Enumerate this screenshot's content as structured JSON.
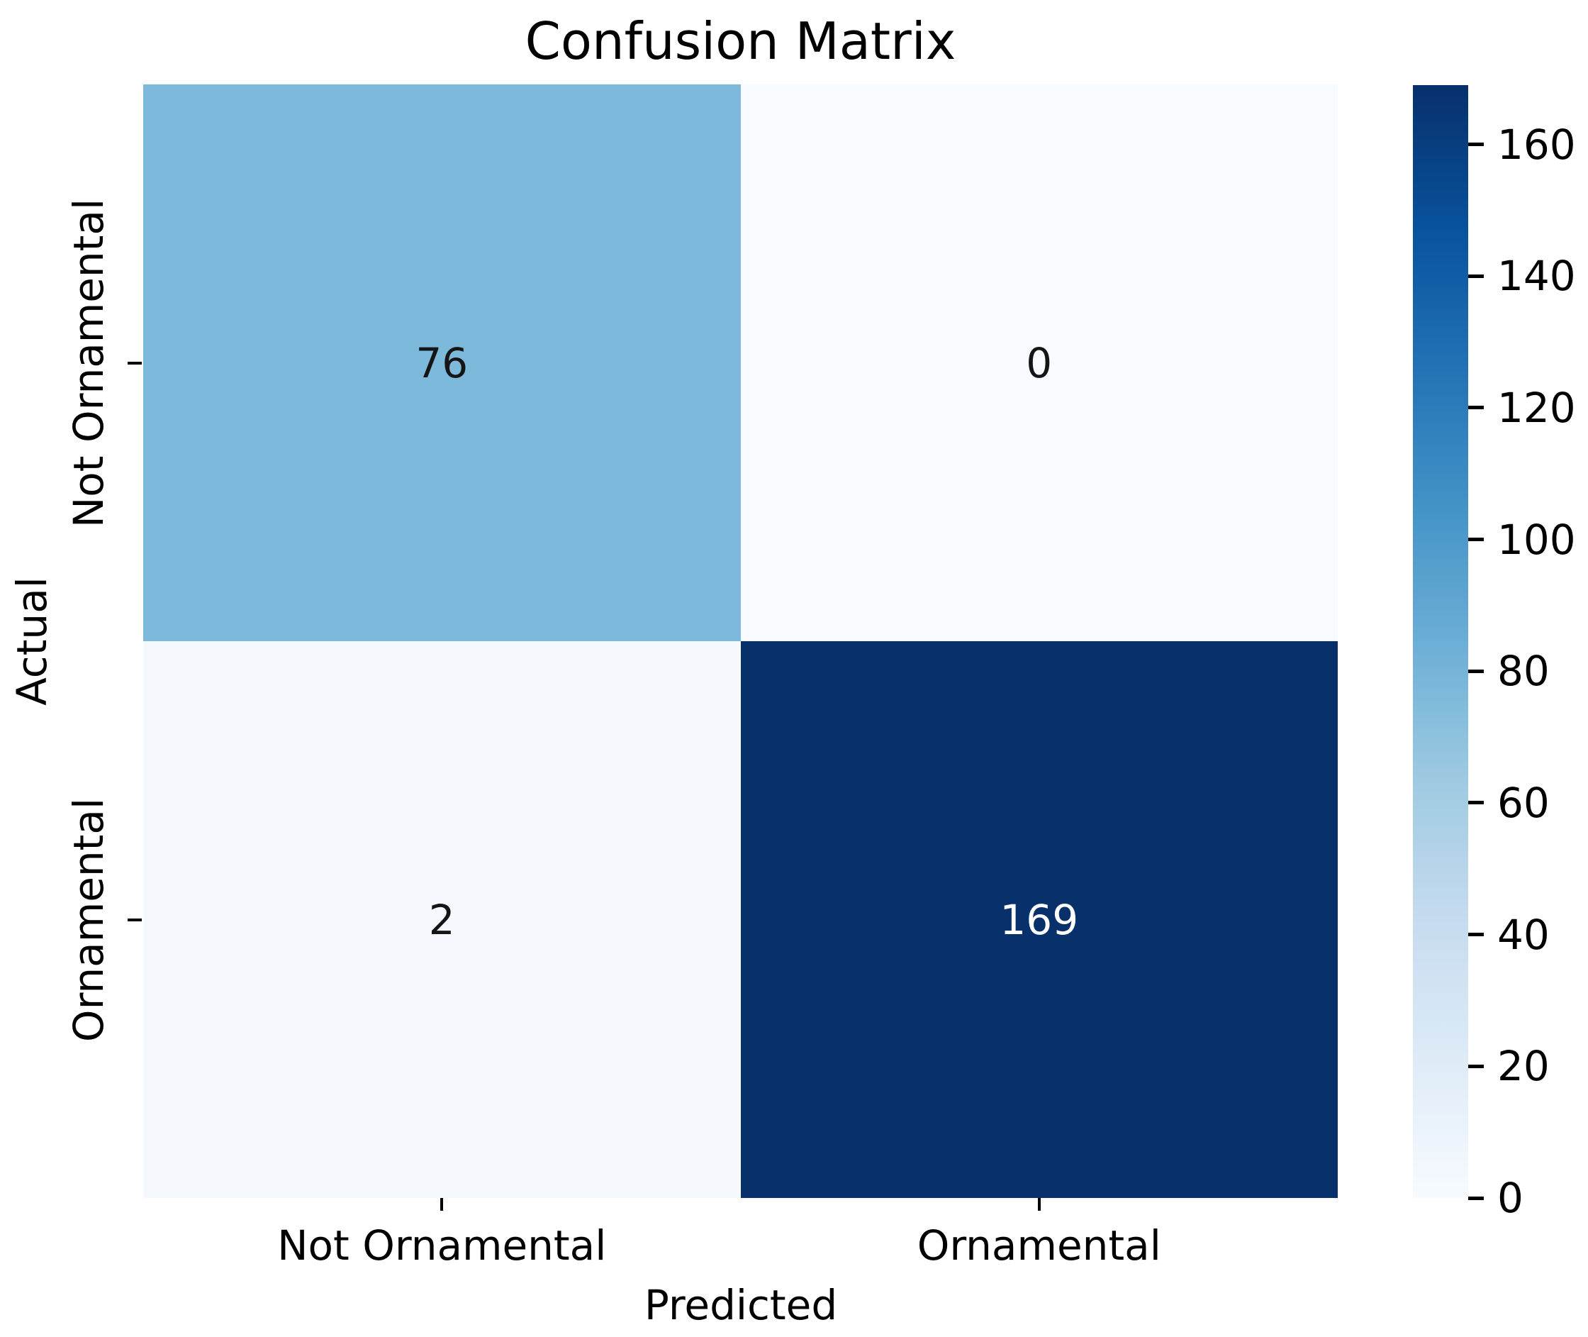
{
  "chart_data": {
    "type": "heatmap",
    "title": "Confusion Matrix",
    "xlabel": "Predicted",
    "ylabel": "Actual",
    "x_categories": [
      "Not Ornamental",
      "Ornamental"
    ],
    "y_categories": [
      "Not Ornamental",
      "Ornamental"
    ],
    "rows": [
      {
        "label": "Not Ornamental",
        "values": [
          76,
          0
        ]
      },
      {
        "label": "Ornamental",
        "values": [
          2,
          169
        ]
      }
    ],
    "vmin": 0,
    "vmax": 169,
    "colormap": "Blues",
    "colorbar_ticks": [
      0,
      20,
      40,
      60,
      80,
      100,
      120,
      140,
      160
    ],
    "colorbar_position": "right",
    "grid": false
  },
  "colors": {
    "background": "#ffffff",
    "cell_colors": [
      [
        "#7db9da",
        "#f7fbff"
      ],
      [
        "#f5f9fe",
        "#08306b"
      ]
    ],
    "cell_text_colors": [
      [
        "#151515",
        "#151515"
      ],
      [
        "#151515",
        "#ffffff"
      ]
    ],
    "gradient_stops": [
      "#f7fbff",
      "#deebf7",
      "#c6dbef",
      "#9ecae1",
      "#6baed6",
      "#4292c6",
      "#2171b5",
      "#08519c",
      "#08306b"
    ],
    "axis_color": "#000000"
  }
}
